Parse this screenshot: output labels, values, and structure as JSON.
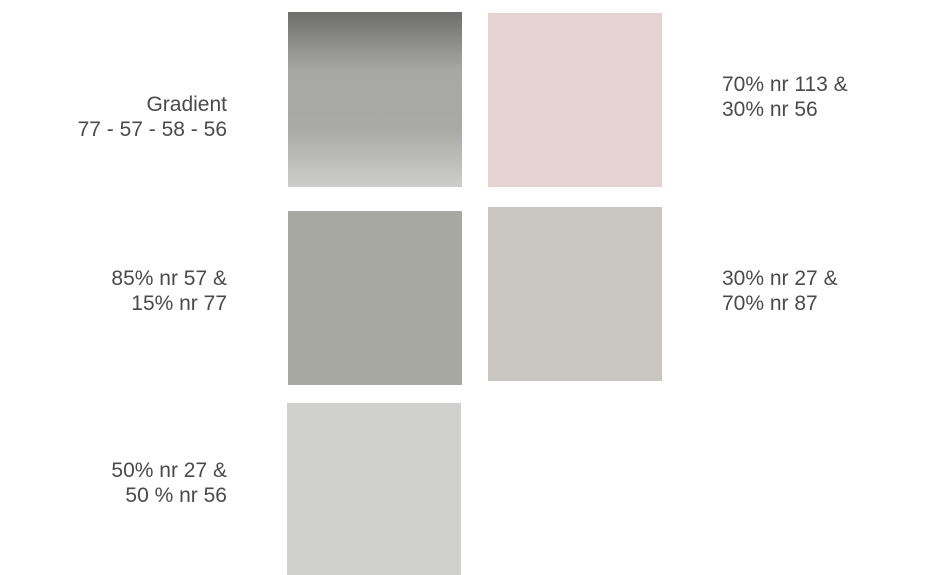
{
  "swatches": [
    {
      "id": "gradient",
      "label_lines": [
        "Gradient",
        "77 - 57 - 58 - 56"
      ],
      "colors": [
        "#6e6e6d",
        "#a7a7a3",
        "#a9a9a6",
        "#cdcdcb"
      ]
    },
    {
      "id": "113-56",
      "label_lines": [
        "70% nr 113 &",
        "30% nr 56"
      ],
      "colors": [
        "#e5d3d1"
      ]
    },
    {
      "id": "57-77",
      "label_lines": [
        "85% nr 57 &",
        "15% nr 77"
      ],
      "colors": [
        "#a8a8a3"
      ]
    },
    {
      "id": "27-87",
      "label_lines": [
        "30% nr 27 &",
        "70% nr 87"
      ],
      "colors": [
        "#c9c5c0"
      ]
    },
    {
      "id": "27-56",
      "label_lines": [
        "50% nr 27 &",
        "50 % nr 56"
      ],
      "colors": [
        "#d0d0ce"
      ]
    }
  ]
}
